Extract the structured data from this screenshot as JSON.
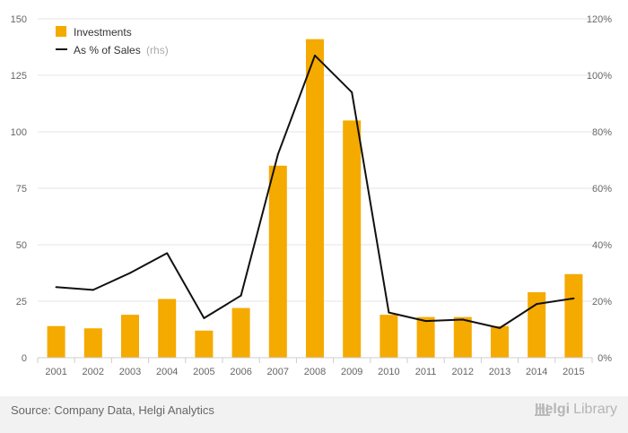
{
  "chart_data": {
    "type": "bar",
    "categories": [
      "2001",
      "2002",
      "2003",
      "2004",
      "2005",
      "2006",
      "2007",
      "2008",
      "2009",
      "2010",
      "2011",
      "2012",
      "2013",
      "2014",
      "2015"
    ],
    "series": [
      {
        "name": "Investments",
        "type": "bar",
        "axis": "left",
        "values": [
          14,
          13,
          19,
          26,
          12,
          22,
          85,
          141,
          105,
          19,
          18,
          18,
          14,
          29,
          37
        ]
      },
      {
        "name": "As % of Sales",
        "type": "line",
        "axis": "right",
        "values": [
          25.0,
          24.0,
          30.0,
          37.0,
          14.0,
          22.0,
          72.0,
          107.0,
          94.0,
          16.0,
          13.0,
          13.5,
          10.5,
          19.0,
          21.0
        ]
      }
    ],
    "ylim_left": [
      0,
      150
    ],
    "yticks_left": [
      "0",
      "25",
      "50",
      "75",
      "100",
      "125",
      "150"
    ],
    "ylim_right": [
      0,
      120
    ],
    "yticks_right": [
      "0%",
      "20%",
      "40%",
      "60%",
      "80%",
      "100%",
      "120%"
    ],
    "grid": true,
    "legend_placement": "top-left",
    "legend": {
      "bar_label": "Investments",
      "line_label": "As % of Sales",
      "line_note": "(rhs)"
    },
    "colors": {
      "bar": "#F5AA00",
      "line": "#111111",
      "grid": "#e6e6e6",
      "axis": "#cccccc"
    }
  },
  "footer": {
    "source": "Source: Company Data, Helgi Analytics",
    "brand_bold": "Helgi",
    "brand_light": "Library"
  }
}
